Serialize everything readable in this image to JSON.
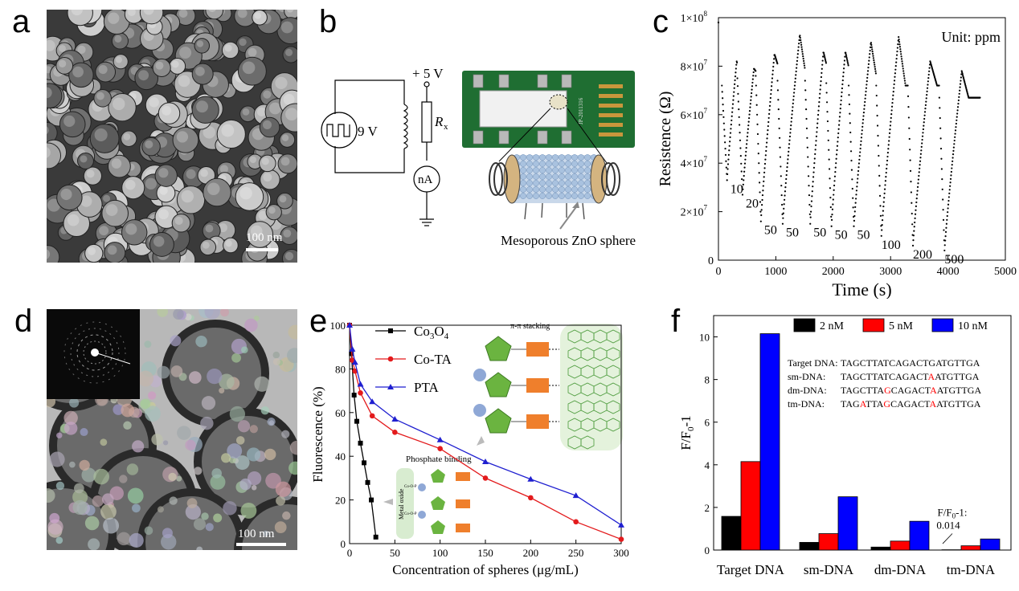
{
  "panels": {
    "a": {
      "letter": "a",
      "scale_label": "100 nm"
    },
    "b": {
      "letter": "b",
      "voltage_label": "+ 5 V",
      "source_label": "9 V",
      "resistor_label": "R",
      "resistor_sub": "x",
      "meter_label": "nA",
      "sphere_label": "Mesoporous ZnO sphere",
      "chip_code": "JP-2011316"
    },
    "d": {
      "letter": "d",
      "scale_label": "100 nm"
    },
    "c": {
      "letter": "c"
    },
    "e": {
      "letter": "e"
    },
    "f": {
      "letter": "f"
    }
  },
  "chart_data": [
    {
      "id": "c",
      "type": "scatter",
      "xlabel": "Time (s)",
      "ylabel": "Resistence (Ω)",
      "xlim": [
        0,
        5000
      ],
      "ylim": [
        0,
        100000000
      ],
      "xticks": [
        0,
        1000,
        2000,
        3000,
        4000,
        5000
      ],
      "yticks": [
        {
          "v": 0,
          "label": "0"
        },
        {
          "v": 20000000,
          "label": "2×10",
          "exp": "7"
        },
        {
          "v": 40000000,
          "label": "4×10",
          "exp": "7"
        },
        {
          "v": 60000000,
          "label": "6×10",
          "exp": "7"
        },
        {
          "v": 80000000,
          "label": "8×10",
          "exp": "7"
        },
        {
          "v": 100000000,
          "label": "1×10",
          "exp": "8"
        }
      ],
      "annotation": "Unit: ppm",
      "cycles": [
        {
          "start": 60,
          "base": 72000000,
          "min": 33000000,
          "peak": 82000000,
          "label": "10"
        },
        {
          "start": 330,
          "base": 75000000,
          "min": 27000000,
          "peak": 79000000,
          "label": "20"
        },
        {
          "start": 650,
          "base": 76000000,
          "min": 16000000,
          "peak": 85000000,
          "label": "50"
        },
        {
          "start": 1030,
          "base": 74000000,
          "min": 15000000,
          "peak": 93000000,
          "label": "50"
        },
        {
          "start": 1510,
          "base": 74000000,
          "min": 15000000,
          "peak": 86000000,
          "label": "50"
        },
        {
          "start": 1880,
          "base": 73000000,
          "min": 14000000,
          "peak": 86000000,
          "label": "50"
        },
        {
          "start": 2270,
          "base": 72000000,
          "min": 14000000,
          "peak": 90000000,
          "label": "50"
        },
        {
          "start": 2750,
          "base": 72000000,
          "min": 10000000,
          "peak": 92000000,
          "label": "100"
        },
        {
          "start": 3300,
          "base": 72000000,
          "min": 6000000,
          "peak": 82000000,
          "label": "200"
        },
        {
          "start": 3850,
          "base": 67000000,
          "min": 4000000,
          "peak": 78000000,
          "label": "500"
        }
      ]
    },
    {
      "id": "e",
      "type": "line",
      "xlabel": "Concentration of spheres (μg/mL)",
      "ylabel": "Fluorescence (%)",
      "xlim": [
        0,
        300
      ],
      "ylim": [
        0,
        100
      ],
      "xticks": [
        0,
        50,
        100,
        150,
        200,
        250,
        300
      ],
      "yticks": [
        0,
        20,
        40,
        60,
        80,
        100
      ],
      "series": [
        {
          "name": "Co3O4",
          "label_main": "Co",
          "label_sub1": "3",
          "label_mid": "O",
          "label_sub2": "4",
          "color": "#000000",
          "marker": "square",
          "x": [
            0,
            2,
            5,
            8,
            12,
            16,
            20,
            24,
            29
          ],
          "y": [
            100,
            87,
            68,
            56,
            46,
            37,
            28,
            20,
            3
          ]
        },
        {
          "name": "Co-TA",
          "color": "#e31a1c",
          "marker": "circle",
          "x": [
            0,
            3,
            6,
            12,
            25,
            50,
            100,
            150,
            200,
            250,
            300
          ],
          "y": [
            100,
            84,
            79,
            69,
            58.5,
            51,
            43.5,
            30,
            21,
            10,
            2
          ]
        },
        {
          "name": "PTA",
          "color": "#1f1fd0",
          "marker": "triangle",
          "x": [
            0,
            3,
            6,
            12,
            25,
            50,
            100,
            150,
            200,
            250,
            300
          ],
          "y": [
            100,
            89,
            83,
            73,
            65,
            57,
            47.5,
            37.5,
            29.5,
            22,
            8.5
          ]
        }
      ],
      "annotations": {
        "stacking": "π-π stacking",
        "binding": "Phosphate binding",
        "oxide": "Metal oxide",
        "coop": "Co-O-P"
      }
    },
    {
      "id": "f",
      "type": "bar",
      "ylabel": "F/F",
      "ylabel_sub": "0",
      "ylabel_tail": "-1",
      "ylim": [
        0,
        11
      ],
      "yticks": [
        0,
        2,
        4,
        6,
        8,
        10
      ],
      "categories": [
        "Target DNA",
        "sm-DNA",
        "dm-DNA",
        "tm-DNA"
      ],
      "series": [
        {
          "name": "2 nM",
          "color": "#000000",
          "values": [
            1.58,
            0.36,
            0.14,
            0.014
          ]
        },
        {
          "name": "5 nM",
          "color": "#ff0000",
          "values": [
            4.15,
            0.77,
            0.42,
            0.2
          ]
        },
        {
          "name": "10 nM",
          "color": "#0000ff",
          "values": [
            10.15,
            2.5,
            1.35,
            0.52
          ]
        }
      ],
      "annotation_label": "F/F",
      "annotation_sub": "0",
      "annotation_tail": "-1:",
      "annotation_value": "0.014",
      "sequences": [
        {
          "name": "Target DNA:",
          "parts": [
            {
              "t": "TAGCTTATCAGACTGATGTTGA",
              "red": false
            }
          ]
        },
        {
          "name": "sm-DNA:",
          "parts": [
            {
              "t": "TAGCTTATCAGACT",
              "red": false
            },
            {
              "t": "A",
              "red": true
            },
            {
              "t": "ATGTTGA",
              "red": false
            }
          ]
        },
        {
          "name": "dm-DNA:",
          "parts": [
            {
              "t": "TAGCTTA",
              "red": false
            },
            {
              "t": "G",
              "red": true
            },
            {
              "t": "CAGACT",
              "red": false
            },
            {
              "t": "A",
              "red": true
            },
            {
              "t": "ATGTTGA",
              "red": false
            }
          ]
        },
        {
          "name": "tm-DNA:",
          "parts": [
            {
              "t": "TAG",
              "red": false
            },
            {
              "t": "A",
              "red": true
            },
            {
              "t": "TTA",
              "red": false
            },
            {
              "t": "G",
              "red": true
            },
            {
              "t": "CAGACT",
              "red": false
            },
            {
              "t": "A",
              "red": true
            },
            {
              "t": "ATGTTGA",
              "red": false
            }
          ]
        }
      ]
    }
  ]
}
